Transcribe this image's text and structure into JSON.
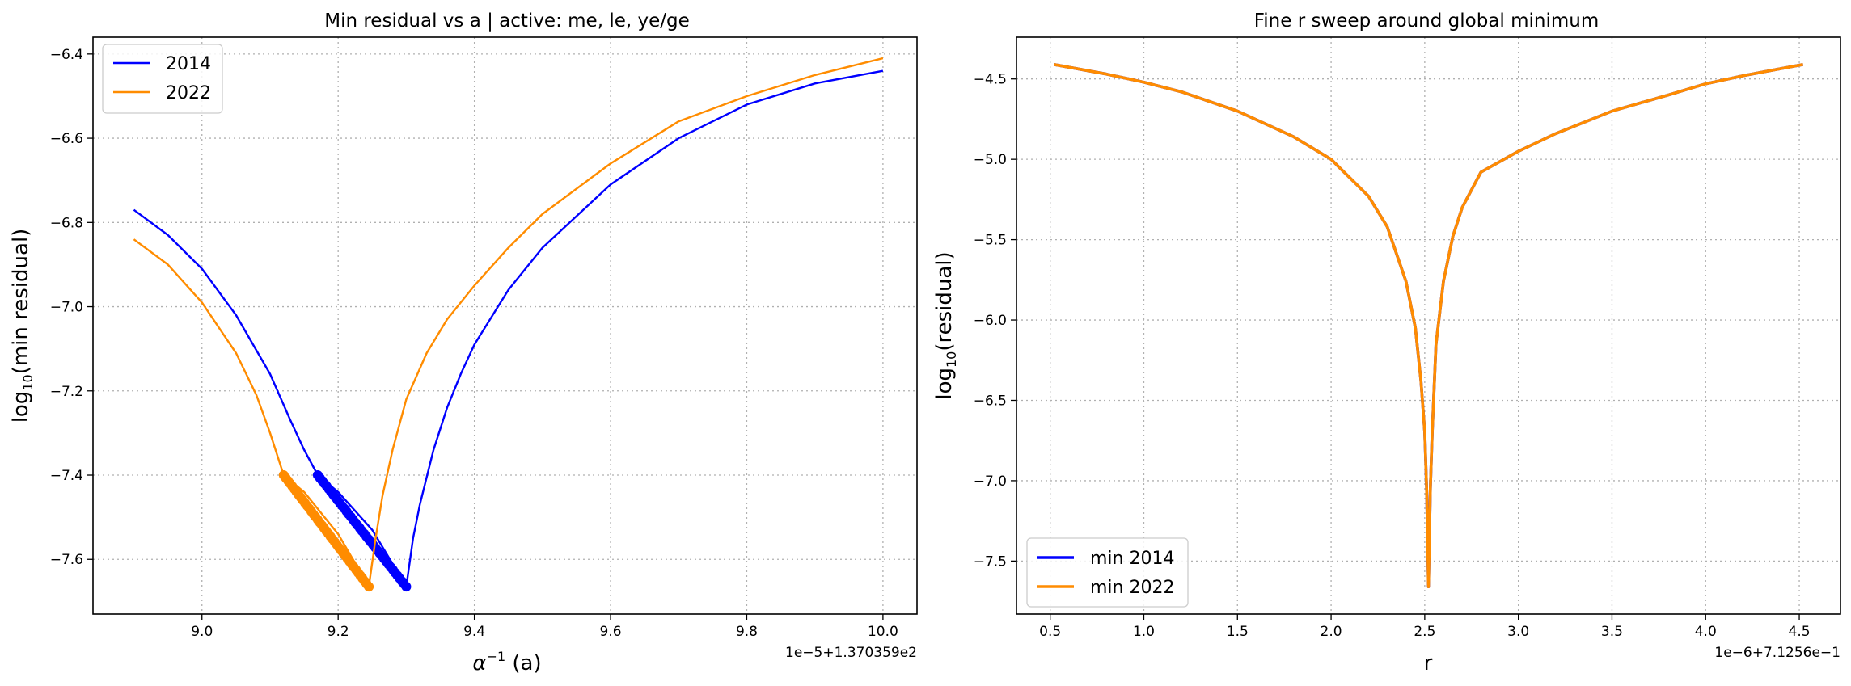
{
  "chart_data": [
    {
      "type": "line",
      "title": "Min residual vs a  |  active: me, le, ye/ge",
      "xlabel": "α⁻¹ (a)",
      "xlabel_main": "α",
      "xlabel_sup": "−1",
      "xlabel_rest": " (a)",
      "ylabel_prefix": "log",
      "ylabel_sub": "10",
      "ylabel_suffix": "(min residual)",
      "x_offset_text": "1e−5+1.370359e2",
      "xlim": [
        8.84,
        10.05
      ],
      "ylim": [
        -7.73,
        -6.36
      ],
      "xticks": [
        9.0,
        9.2,
        9.4,
        9.6,
        9.8,
        10.0
      ],
      "xtick_labels": [
        "9.0",
        "9.2",
        "9.4",
        "9.6",
        "9.8",
        "10.0"
      ],
      "yticks": [
        -6.4,
        -6.6,
        -6.8,
        -7.0,
        -7.2,
        -7.4,
        -7.6
      ],
      "ytick_labels": [
        "−6.4",
        "−6.6",
        "−6.8",
        "−7.0",
        "−7.2",
        "−7.4",
        "−7.6"
      ],
      "grid": true,
      "legend_position": "top-left",
      "series": [
        {
          "name": "2014",
          "color": "#0000ff",
          "line_x": [
            8.9,
            8.95,
            9.0,
            9.05,
            9.1,
            9.13,
            9.15,
            9.17,
            9.2,
            9.25,
            9.3,
            9.31,
            9.32,
            9.34,
            9.36,
            9.38,
            9.4,
            9.45,
            9.5,
            9.6,
            9.7,
            9.8,
            9.9,
            10.0
          ],
          "line_y": [
            -6.77,
            -6.83,
            -6.91,
            -7.02,
            -7.16,
            -7.27,
            -7.34,
            -7.4,
            -7.44,
            -7.53,
            -7.665,
            -7.55,
            -7.47,
            -7.34,
            -7.24,
            -7.16,
            -7.09,
            -6.96,
            -6.86,
            -6.71,
            -6.6,
            -6.52,
            -6.47,
            -6.44
          ],
          "marker_x": [
            9.17,
            9.3
          ],
          "marker_y": [
            -7.4,
            -7.665
          ]
        },
        {
          "name": "2022",
          "color": "#ff8c00",
          "line_x": [
            8.9,
            8.95,
            9.0,
            9.05,
            9.08,
            9.1,
            9.12,
            9.15,
            9.2,
            9.245,
            9.255,
            9.265,
            9.28,
            9.3,
            9.33,
            9.36,
            9.4,
            9.45,
            9.5,
            9.6,
            9.7,
            9.8,
            9.9,
            10.0
          ],
          "line_y": [
            -6.84,
            -6.9,
            -6.99,
            -7.11,
            -7.21,
            -7.3,
            -7.4,
            -7.44,
            -7.54,
            -7.665,
            -7.55,
            -7.45,
            -7.34,
            -7.22,
            -7.11,
            -7.03,
            -6.95,
            -6.86,
            -6.78,
            -6.66,
            -6.56,
            -6.5,
            -6.45,
            -6.41
          ],
          "marker_x": [
            9.12,
            9.245
          ],
          "marker_y": [
            -7.4,
            -7.665
          ]
        }
      ]
    },
    {
      "type": "line",
      "title": "Fine r sweep around global minimum",
      "xlabel": "r",
      "ylabel_prefix": "log",
      "ylabel_sub": "10",
      "ylabel_suffix": "(residual)",
      "x_offset_text": "1e−6+7.1256e−1",
      "xlim": [
        0.32,
        4.72
      ],
      "ylim": [
        -7.83,
        -4.24
      ],
      "xticks": [
        0.5,
        1.0,
        1.5,
        2.0,
        2.5,
        3.0,
        3.5,
        4.0,
        4.5
      ],
      "xtick_labels": [
        "0.5",
        "1.0",
        "1.5",
        "2.0",
        "2.5",
        "3.0",
        "3.5",
        "4.0",
        "4.5"
      ],
      "yticks": [
        -4.5,
        -5.0,
        -5.5,
        -6.0,
        -6.5,
        -7.0,
        -7.5
      ],
      "ytick_labels": [
        "−4.5",
        "−5.0",
        "−5.5",
        "−6.0",
        "−6.5",
        "−7.0",
        "−7.5"
      ],
      "grid": true,
      "legend_position": "bottom-left",
      "series": [
        {
          "name": "min 2014",
          "color": "#0000ff",
          "x": [
            0.52,
            0.8,
            1.0,
            1.2,
            1.5,
            1.8,
            2.0,
            2.2,
            2.3,
            2.4,
            2.45,
            2.48,
            2.5,
            2.51,
            2.52,
            2.53,
            2.54,
            2.56,
            2.6,
            2.65,
            2.7,
            2.8,
            3.0,
            3.2,
            3.5,
            3.8,
            4.0,
            4.2,
            4.52
          ],
          "y": [
            -4.41,
            -4.47,
            -4.52,
            -4.58,
            -4.7,
            -4.86,
            -5.0,
            -5.23,
            -5.42,
            -5.76,
            -6.05,
            -6.38,
            -6.7,
            -7.05,
            -7.66,
            -7.05,
            -6.7,
            -6.15,
            -5.76,
            -5.48,
            -5.3,
            -5.08,
            -4.95,
            -4.84,
            -4.7,
            -4.6,
            -4.53,
            -4.48,
            -4.41
          ]
        },
        {
          "name": "min 2022",
          "color": "#ff8c00",
          "x": [
            0.52,
            0.8,
            1.0,
            1.2,
            1.5,
            1.8,
            2.0,
            2.2,
            2.3,
            2.4,
            2.45,
            2.48,
            2.5,
            2.51,
            2.52,
            2.53,
            2.54,
            2.56,
            2.6,
            2.65,
            2.7,
            2.8,
            3.0,
            3.2,
            3.5,
            3.8,
            4.0,
            4.2,
            4.52
          ],
          "y": [
            -4.41,
            -4.47,
            -4.52,
            -4.58,
            -4.7,
            -4.86,
            -5.0,
            -5.23,
            -5.42,
            -5.76,
            -6.05,
            -6.38,
            -6.7,
            -7.05,
            -7.66,
            -7.05,
            -6.7,
            -6.15,
            -5.76,
            -5.48,
            -5.3,
            -5.08,
            -4.95,
            -4.84,
            -4.7,
            -4.6,
            -4.53,
            -4.48,
            -4.41
          ]
        }
      ]
    }
  ]
}
